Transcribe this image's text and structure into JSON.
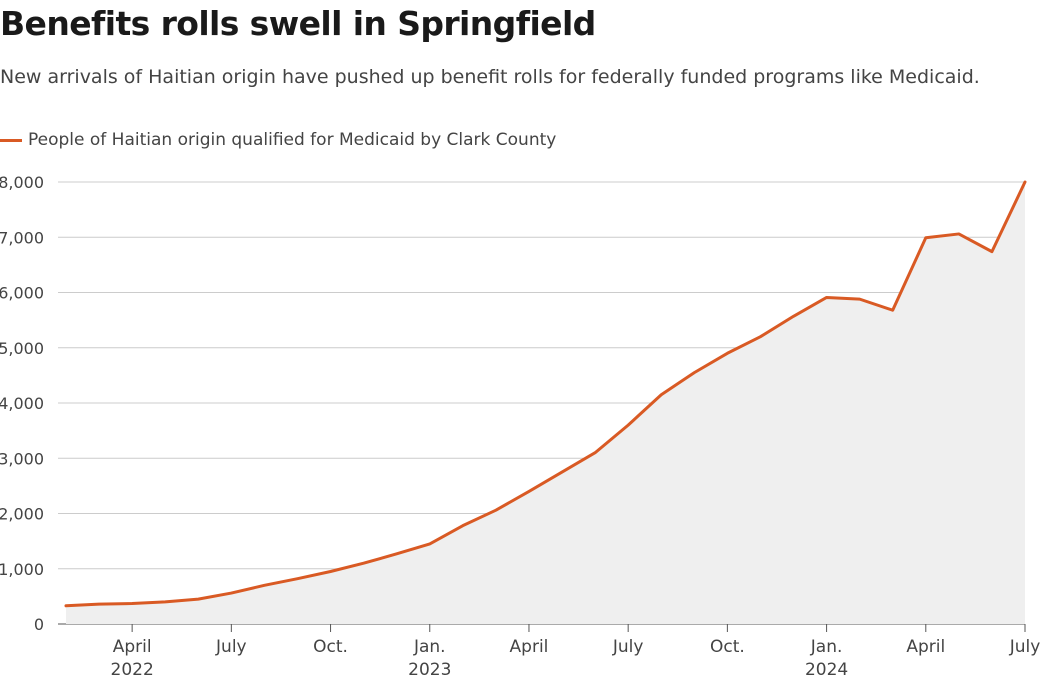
{
  "header": {
    "title": "Benefits rolls swell in Springfield",
    "subtitle": "New arrivals of Haitian origin have pushed up benefit rolls for federally funded programs like Medicaid."
  },
  "colors": {
    "line": "#d95a24",
    "area": "#efefef",
    "grid": "#cccccc",
    "axis": "#555555"
  },
  "chart_data": {
    "type": "area",
    "title": "Benefits rolls swell in Springfield",
    "subtitle": "New arrivals of Haitian origin have pushed up benefit rolls for federally funded programs like Medicaid.",
    "xlabel": "",
    "ylabel": "",
    "grid": true,
    "legend_position": "top-left",
    "ylim": [
      0,
      8000
    ],
    "yticks": [
      0,
      1000,
      2000,
      3000,
      4000,
      5000,
      6000,
      7000,
      8000
    ],
    "ytick_labels": [
      "0",
      "1,000",
      "2,000",
      "3,000",
      "4,000",
      "5,000",
      "6,000",
      "7,000",
      "8,000"
    ],
    "xlim": [
      0,
      29
    ],
    "xticks": [
      {
        "x": 2,
        "label": "April",
        "sublabel": "2022"
      },
      {
        "x": 5,
        "label": "July",
        "sublabel": ""
      },
      {
        "x": 8,
        "label": "Oct.",
        "sublabel": ""
      },
      {
        "x": 11,
        "label": "Jan.",
        "sublabel": "2023"
      },
      {
        "x": 14,
        "label": "April",
        "sublabel": ""
      },
      {
        "x": 17,
        "label": "July",
        "sublabel": ""
      },
      {
        "x": 20,
        "label": "Oct.",
        "sublabel": ""
      },
      {
        "x": 23,
        "label": "Jan.",
        "sublabel": "2024"
      },
      {
        "x": 26,
        "label": "April",
        "sublabel": ""
      },
      {
        "x": 29,
        "label": "July",
        "sublabel": ""
      }
    ],
    "series": [
      {
        "name": "People of Haitian origin qualified for Medicaid by Clark County",
        "x": [
          0,
          1,
          2,
          3,
          4,
          5,
          6,
          7,
          8,
          9,
          10,
          11,
          12,
          13,
          14,
          15,
          16,
          17,
          18,
          19,
          20,
          21,
          22,
          23,
          24,
          25,
          26,
          27,
          28,
          29
        ],
        "values": [
          330,
          360,
          370,
          400,
          450,
          560,
          700,
          820,
          950,
          1100,
          1270,
          1450,
          1780,
          2060,
          2400,
          2750,
          3100,
          3600,
          4150,
          4550,
          4900,
          5200,
          5570,
          5910,
          5880,
          5680,
          6990,
          7060,
          6740,
          8000
        ]
      }
    ]
  }
}
